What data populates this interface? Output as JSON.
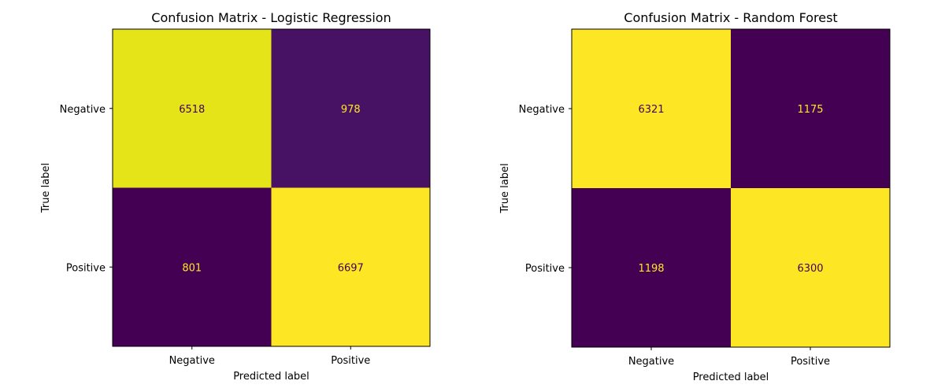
{
  "chart_data": [
    {
      "type": "heatmap",
      "title": "Confusion Matrix - Logistic Regression",
      "xlabel": "Predicted label",
      "ylabel": "True label",
      "x_categories": [
        "Negative",
        "Positive"
      ],
      "y_categories": [
        "Negative",
        "Positive"
      ],
      "values": [
        [
          6518,
          978
        ],
        [
          801,
          6697
        ]
      ],
      "colormap": "viridis",
      "cell_colors": [
        [
          "#e5e419",
          "#471164"
        ],
        [
          "#440154",
          "#fde725"
        ]
      ],
      "text_colors": [
        [
          "#440154",
          "#fde725"
        ],
        [
          "#fde725",
          "#440154"
        ]
      ],
      "grid": false
    },
    {
      "type": "heatmap",
      "title": "Confusion Matrix - Random Forest",
      "xlabel": "Predicted label",
      "ylabel": "True label",
      "x_categories": [
        "Negative",
        "Positive"
      ],
      "y_categories": [
        "Negative",
        "Positive"
      ],
      "values": [
        [
          6321,
          1175
        ],
        [
          1198,
          6300
        ]
      ],
      "colormap": "viridis",
      "cell_colors": [
        [
          "#fde725",
          "#440154"
        ],
        [
          "#440154",
          "#fde725"
        ]
      ],
      "text_colors": [
        [
          "#440154",
          "#fde725"
        ],
        [
          "#fde725",
          "#440154"
        ]
      ],
      "grid": false
    }
  ]
}
